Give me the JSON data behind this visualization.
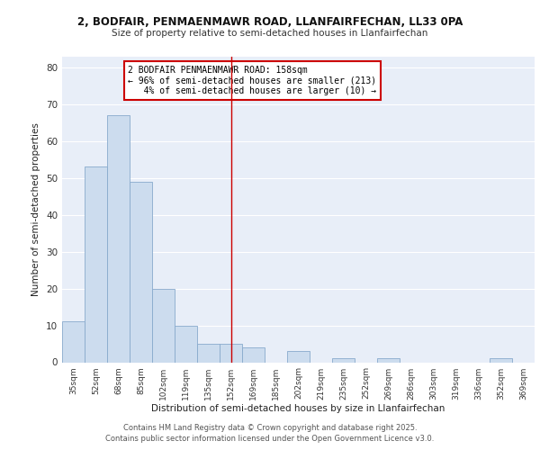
{
  "title1": "2, BODFAIR, PENMAENMAWR ROAD, LLANFAIRFECHAN, LL33 0PA",
  "title2": "Size of property relative to semi-detached houses in Llanfairfechan",
  "xlabel": "Distribution of semi-detached houses by size in Llanfairfechan",
  "ylabel": "Number of semi-detached properties",
  "categories": [
    "35sqm",
    "52sqm",
    "68sqm",
    "85sqm",
    "102sqm",
    "119sqm",
    "135sqm",
    "152sqm",
    "169sqm",
    "185sqm",
    "202sqm",
    "219sqm",
    "235sqm",
    "252sqm",
    "269sqm",
    "286sqm",
    "303sqm",
    "319sqm",
    "336sqm",
    "352sqm",
    "369sqm"
  ],
  "values": [
    11,
    53,
    67,
    49,
    20,
    10,
    5,
    5,
    4,
    0,
    3,
    0,
    1,
    0,
    1,
    0,
    0,
    0,
    0,
    1,
    0
  ],
  "bar_color": "#ccdcee",
  "bar_edge_color": "#88aacc",
  "background_color": "#e8eef8",
  "grid_color": "#ffffff",
  "red_line_x": 7,
  "annotation_text": "2 BODFAIR PENMAENMAWR ROAD: 158sqm\n← 96% of semi-detached houses are smaller (213)\n   4% of semi-detached houses are larger (10) →",
  "annotation_box_color": "#ffffff",
  "annotation_border_color": "#cc0000",
  "ylim": [
    0,
    83
  ],
  "yticks": [
    0,
    10,
    20,
    30,
    40,
    50,
    60,
    70,
    80
  ],
  "footer1": "Contains HM Land Registry data © Crown copyright and database right 2025.",
  "footer2": "Contains public sector information licensed under the Open Government Licence v3.0."
}
